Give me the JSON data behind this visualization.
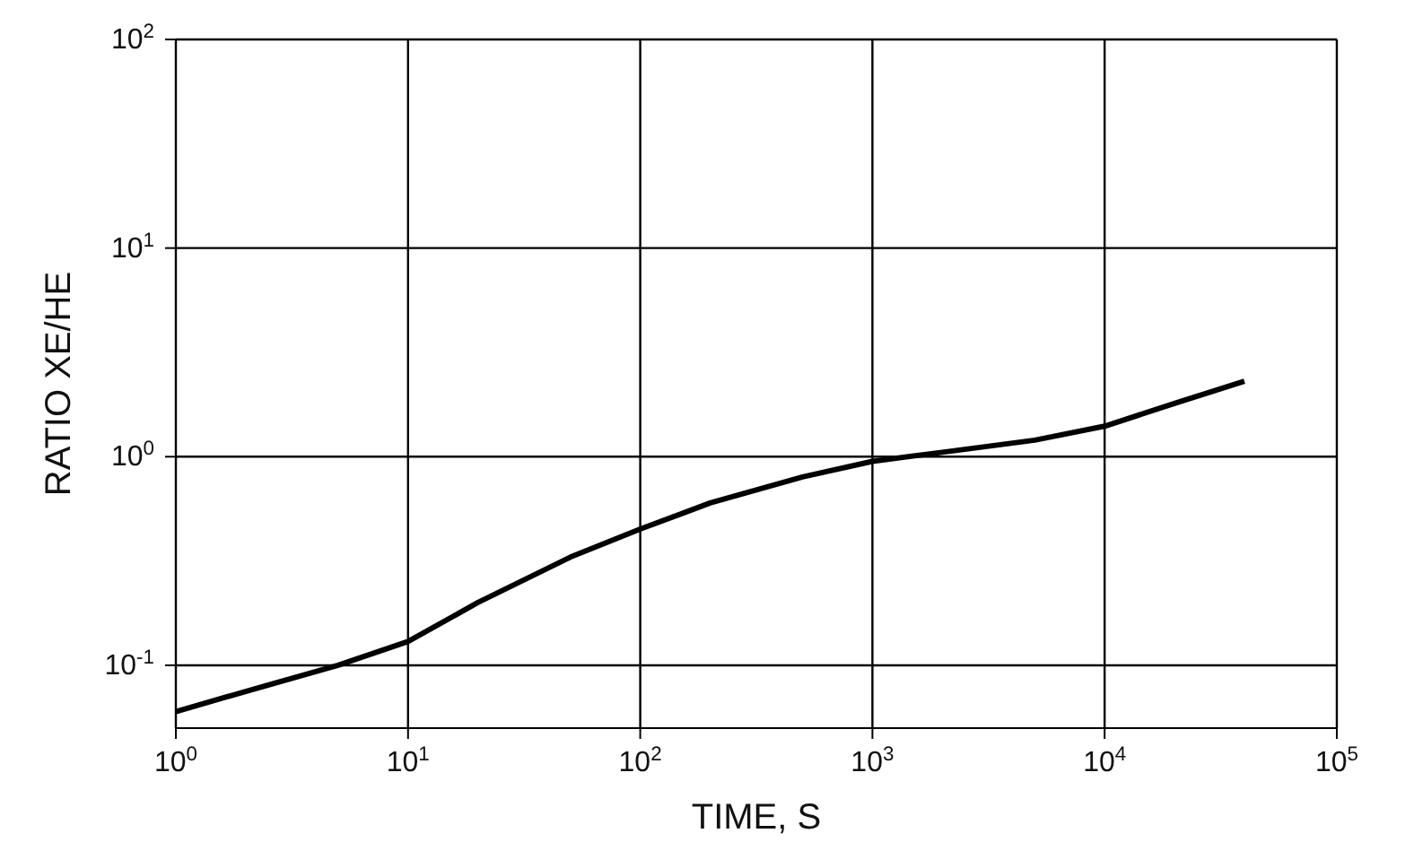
{
  "chart_data": {
    "type": "line",
    "xlabel": "TIME, S",
    "ylabel": "RATIO XE/HE",
    "log": "xy",
    "grid": true,
    "marker": "none",
    "line_style": "solid",
    "xlim": [
      1,
      100000
    ],
    "ylim": [
      0.05,
      100
    ],
    "xticks": [
      {
        "value": 1,
        "label": "10$^{0}$"
      },
      {
        "value": 10,
        "label": "10$^{1}$"
      },
      {
        "value": 100,
        "label": "10$^{2}$"
      },
      {
        "value": 1000,
        "label": "10$^{3}$"
      },
      {
        "value": 10000,
        "label": "10$^{4}$"
      },
      {
        "value": 100000,
        "label": "10$^{5}$"
      }
    ],
    "yticks": [
      {
        "value": 0.1,
        "label": "10$^{-1}$"
      },
      {
        "value": 1,
        "label": "10$^{0}$"
      },
      {
        "value": 10,
        "label": "10$^{1}$"
      },
      {
        "value": 100,
        "label": "10$^{2}$"
      }
    ],
    "series": [
      {
        "color": "#000000",
        "x": [
          1,
          2,
          5,
          10,
          20,
          50,
          100,
          200,
          500,
          1000,
          2000,
          5000,
          10000,
          20000,
          40000
        ],
        "values": [
          0.06,
          0.075,
          0.1,
          0.13,
          0.2,
          0.33,
          0.45,
          0.6,
          0.8,
          0.95,
          1.05,
          1.2,
          1.4,
          1.8,
          2.3
        ]
      }
    ]
  }
}
